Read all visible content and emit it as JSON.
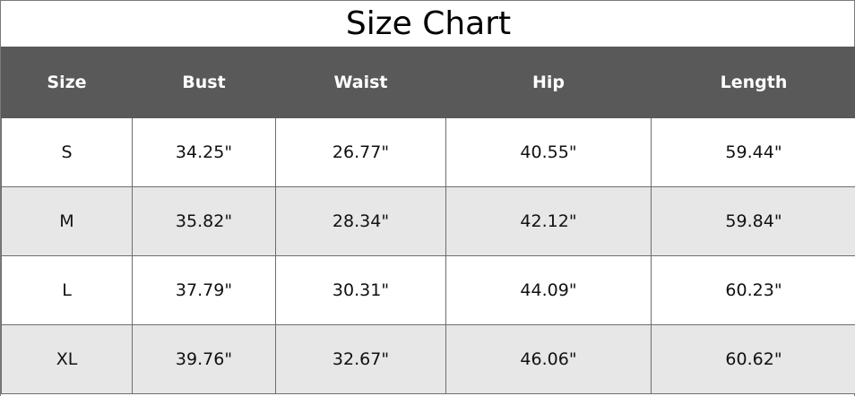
{
  "title": "Size Chart",
  "columns": [
    "Size",
    "Bust",
    "Waist",
    "Hip",
    "Length"
  ],
  "rows": [
    [
      "S",
      "34.25\"",
      "26.77\"",
      "40.55\"",
      "59.44\""
    ],
    [
      "M",
      "35.82\"",
      "28.34\"",
      "42.12\"",
      "59.84\""
    ],
    [
      "L",
      "37.79\"",
      "30.31\"",
      "44.09\"",
      "60.23\""
    ],
    [
      "XL",
      "39.76\"",
      "32.67\"",
      "46.06\"",
      "60.62\""
    ]
  ],
  "colors": {
    "header_background": "#595959",
    "header_text": "#ffffff",
    "alt_row_background": "#e7e7e7",
    "row_background": "#ffffff"
  }
}
